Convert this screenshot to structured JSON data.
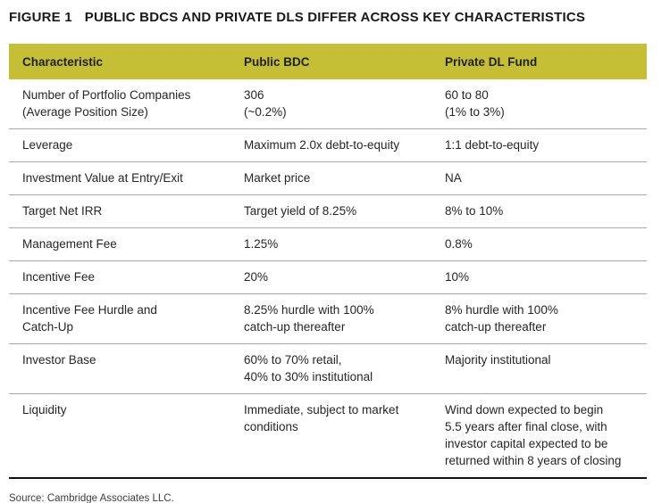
{
  "figure": {
    "label": "FIGURE 1",
    "title": "PUBLIC BDCS AND PRIVATE DLS DIFFER ACROSS KEY CHARACTERISTICS"
  },
  "colors": {
    "header_bg": "#c4bf34",
    "divider": "#a8a8a8",
    "bottom_rule": "#111111"
  },
  "table": {
    "columns": [
      "Characteristic",
      "Public BDC",
      "Private DL Fund"
    ],
    "rows": [
      [
        "Number of Portfolio Companies\n(Average Position Size)",
        "306\n(~0.2%)",
        "60 to 80\n(1% to 3%)"
      ],
      [
        "Leverage",
        "Maximum 2.0x debt-to-equity",
        "1:1 debt-to-equity"
      ],
      [
        "Investment Value at Entry/Exit",
        "Market price",
        "NA"
      ],
      [
        "Target Net IRR",
        "Target yield of 8.25%",
        "8% to 10%"
      ],
      [
        "Management Fee",
        "1.25%",
        "0.8%"
      ],
      [
        "Incentive Fee",
        "20%",
        "10%"
      ],
      [
        "Incentive Fee Hurdle and\nCatch-Up",
        "8.25% hurdle with 100%\ncatch-up thereafter",
        "8% hurdle with 100%\ncatch-up thereafter"
      ],
      [
        "Investor Base",
        "60% to 70% retail,\n40% to 30% institutional",
        "Majority institutional"
      ],
      [
        "Liquidity",
        "Immediate, subject to market\nconditions",
        "Wind down expected to begin\n5.5 years after final close, with\ninvestor capital expected to be\nreturned within 8 years of closing"
      ]
    ]
  },
  "source": "Source: Cambridge Associates LLC."
}
